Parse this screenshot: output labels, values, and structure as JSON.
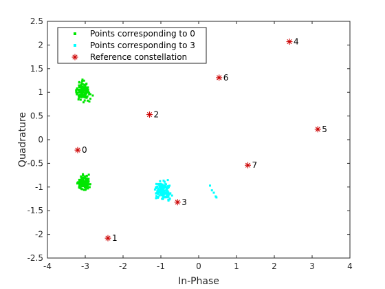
{
  "chart_data": {
    "type": "scatter",
    "title": "",
    "xlabel": "In-Phase",
    "ylabel": "Quadrature",
    "xlim": [
      -4,
      4
    ],
    "ylim": [
      -2.5,
      2.5
    ],
    "xticks": [
      "-4",
      "-3",
      "-2",
      "-1",
      "0",
      "1",
      "2",
      "3",
      "4"
    ],
    "yticks": [
      "2.5",
      "2",
      "1.5",
      "1",
      "0.5",
      "0",
      "-0.5",
      "-1",
      "-1.5",
      "-2",
      "-2.5"
    ],
    "legend_position": "top-left",
    "grid": false,
    "series": [
      {
        "name": "Points corresponding to 0",
        "color": "#00e600",
        "marker": "point",
        "clusters": [
          {
            "center": [
              -3.05,
              1.02
            ],
            "spread": [
              0.17,
              0.17
            ],
            "count": 130
          },
          {
            "center": [
              -3.05,
              -0.92
            ],
            "spread": [
              0.17,
              0.14
            ],
            "count": 130
          }
        ]
      },
      {
        "name": "Points corresponding to 3",
        "color": "#00ffff",
        "marker": "point",
        "clusters": [
          {
            "center": [
              -0.95,
              -1.07
            ],
            "spread": [
              0.18,
              0.16
            ],
            "count": 150
          }
        ],
        "extra_points": [
          [
            0.3,
            -0.97
          ],
          [
            0.35,
            -1.07
          ],
          [
            0.4,
            -1.12
          ],
          [
            0.45,
            -1.2
          ],
          [
            0.47,
            -1.22
          ]
        ]
      },
      {
        "name": "Reference constellation",
        "color": "#cc0000",
        "marker": "asterisk",
        "points": [
          {
            "label": "0",
            "x": -3.2,
            "y": -0.22
          },
          {
            "label": "1",
            "x": -2.4,
            "y": -2.08
          },
          {
            "label": "2",
            "x": -1.3,
            "y": 0.53
          },
          {
            "label": "3",
            "x": -0.56,
            "y": -1.32
          },
          {
            "label": "4",
            "x": 2.4,
            "y": 2.07
          },
          {
            "label": "5",
            "x": 3.15,
            "y": 0.22
          },
          {
            "label": "6",
            "x": 0.54,
            "y": 1.31
          },
          {
            "label": "7",
            "x": 1.3,
            "y": -0.54
          }
        ]
      }
    ]
  }
}
